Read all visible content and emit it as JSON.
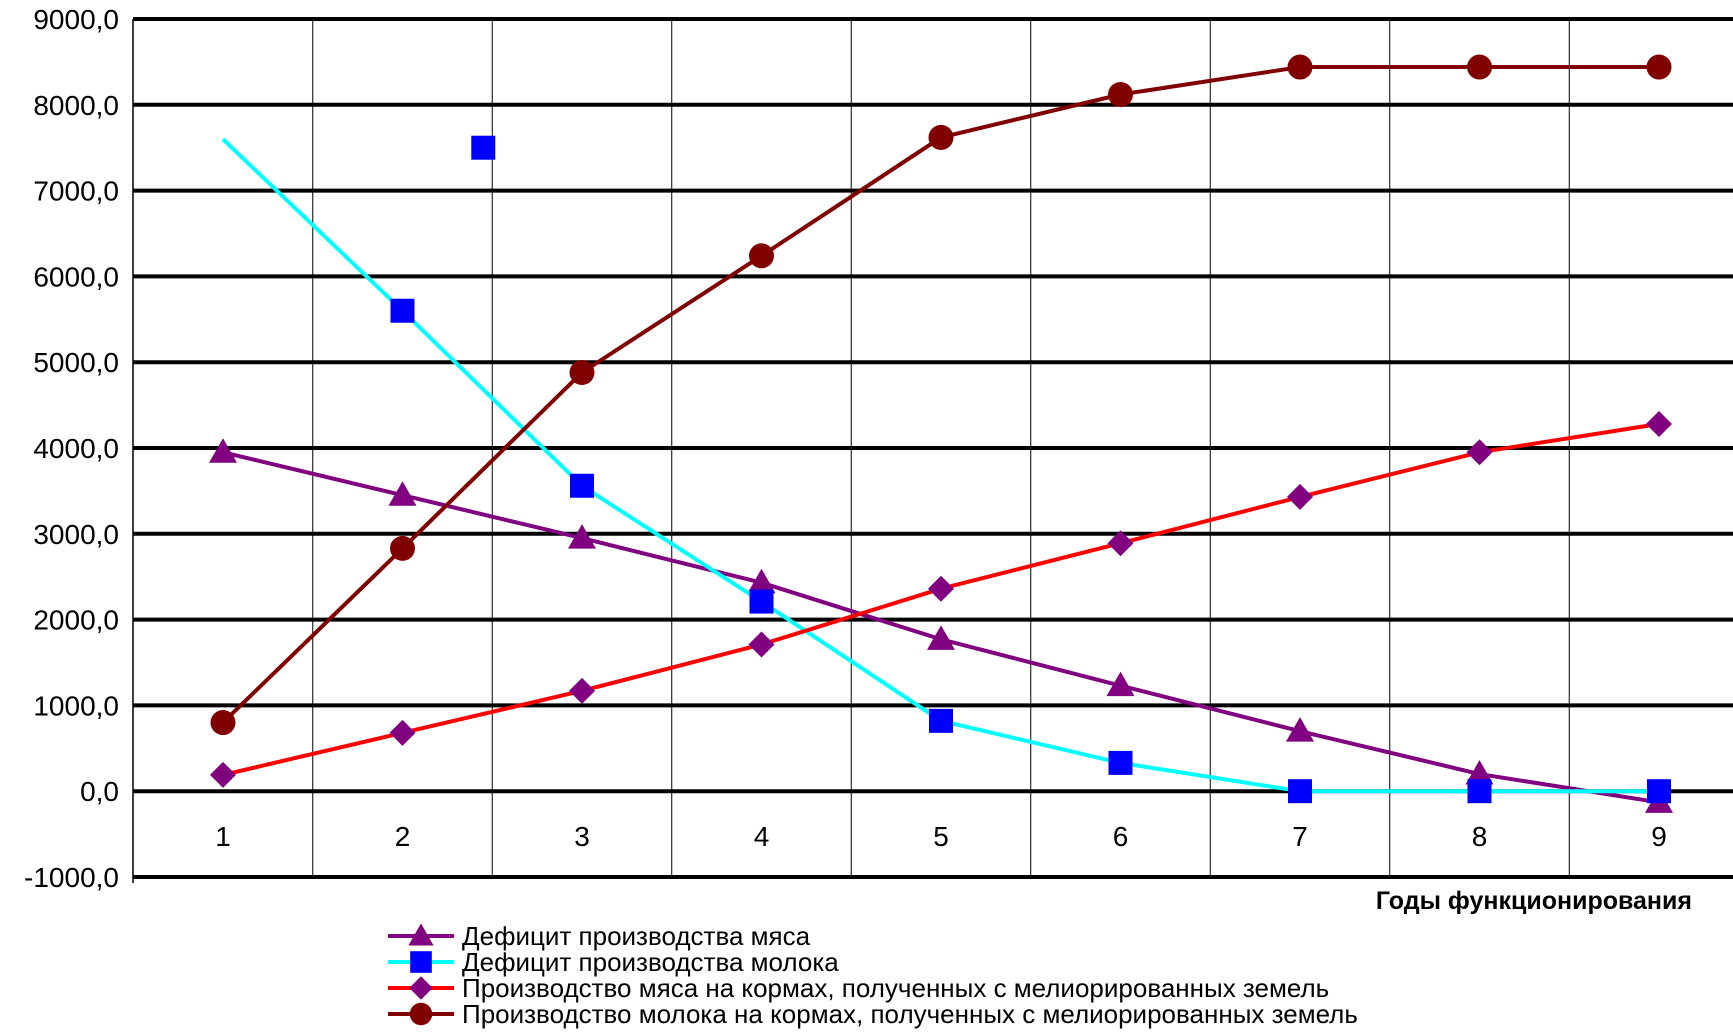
{
  "chart_data": {
    "type": "line",
    "xlabel": "Годы функционирования",
    "ylabel": "",
    "ylim": [
      -1000,
      9000
    ],
    "y_ticks": [
      9000,
      8000,
      7000,
      6000,
      5000,
      4000,
      3000,
      2000,
      1000,
      0,
      -1000
    ],
    "y_tick_labels": [
      "9000,0",
      "8000,0",
      "7000,0",
      "6000,0",
      "5000,0",
      "4000,0",
      "3000,0",
      "2000,0",
      "1000,0",
      "0,0",
      "-1000,0"
    ],
    "categories": [
      "1",
      "2",
      "3",
      "4",
      "5",
      "6",
      "7",
      "8",
      "9"
    ],
    "grid": true,
    "legend_position": "bottom",
    "series": [
      {
        "name": "Дефицит производства мяса",
        "color": "#800080",
        "marker": "triangle",
        "x": [
          1,
          2,
          3,
          4,
          5,
          6,
          7,
          8,
          9
        ],
        "values": [
          3950,
          3450,
          2950,
          2430,
          1770,
          1230,
          700,
          200,
          -130
        ]
      },
      {
        "name": "Дефицит производства  молока",
        "color": "#00ffff",
        "marker_color": "#0000ff",
        "marker": "square",
        "x": [
          1,
          2,
          3,
          4,
          5,
          6,
          7,
          8,
          9
        ],
        "values": [
          7600,
          5600,
          3560,
          2210,
          820,
          330,
          0,
          0,
          0
        ],
        "extra_points": [
          {
            "x": 2.45,
            "value": 7500
          }
        ]
      },
      {
        "name": "Производство  мяса на кормах, полученных с мелиорированных земель",
        "color": "#ff0000",
        "marker_color": "#800080",
        "marker": "diamond",
        "x": [
          1,
          2,
          3,
          4,
          5,
          6,
          7,
          8,
          9
        ],
        "values": [
          190,
          680,
          1170,
          1710,
          2360,
          2890,
          3430,
          3950,
          4280
        ]
      },
      {
        "name": "Производство молока на кормах, полученных с  мелиорированных земель",
        "color": "#800000",
        "marker": "circle",
        "x": [
          1,
          2,
          3,
          4,
          5,
          6,
          7,
          8,
          9
        ],
        "values": [
          800,
          2830,
          4880,
          6240,
          7620,
          8120,
          8440,
          8440,
          8440
        ]
      }
    ]
  }
}
